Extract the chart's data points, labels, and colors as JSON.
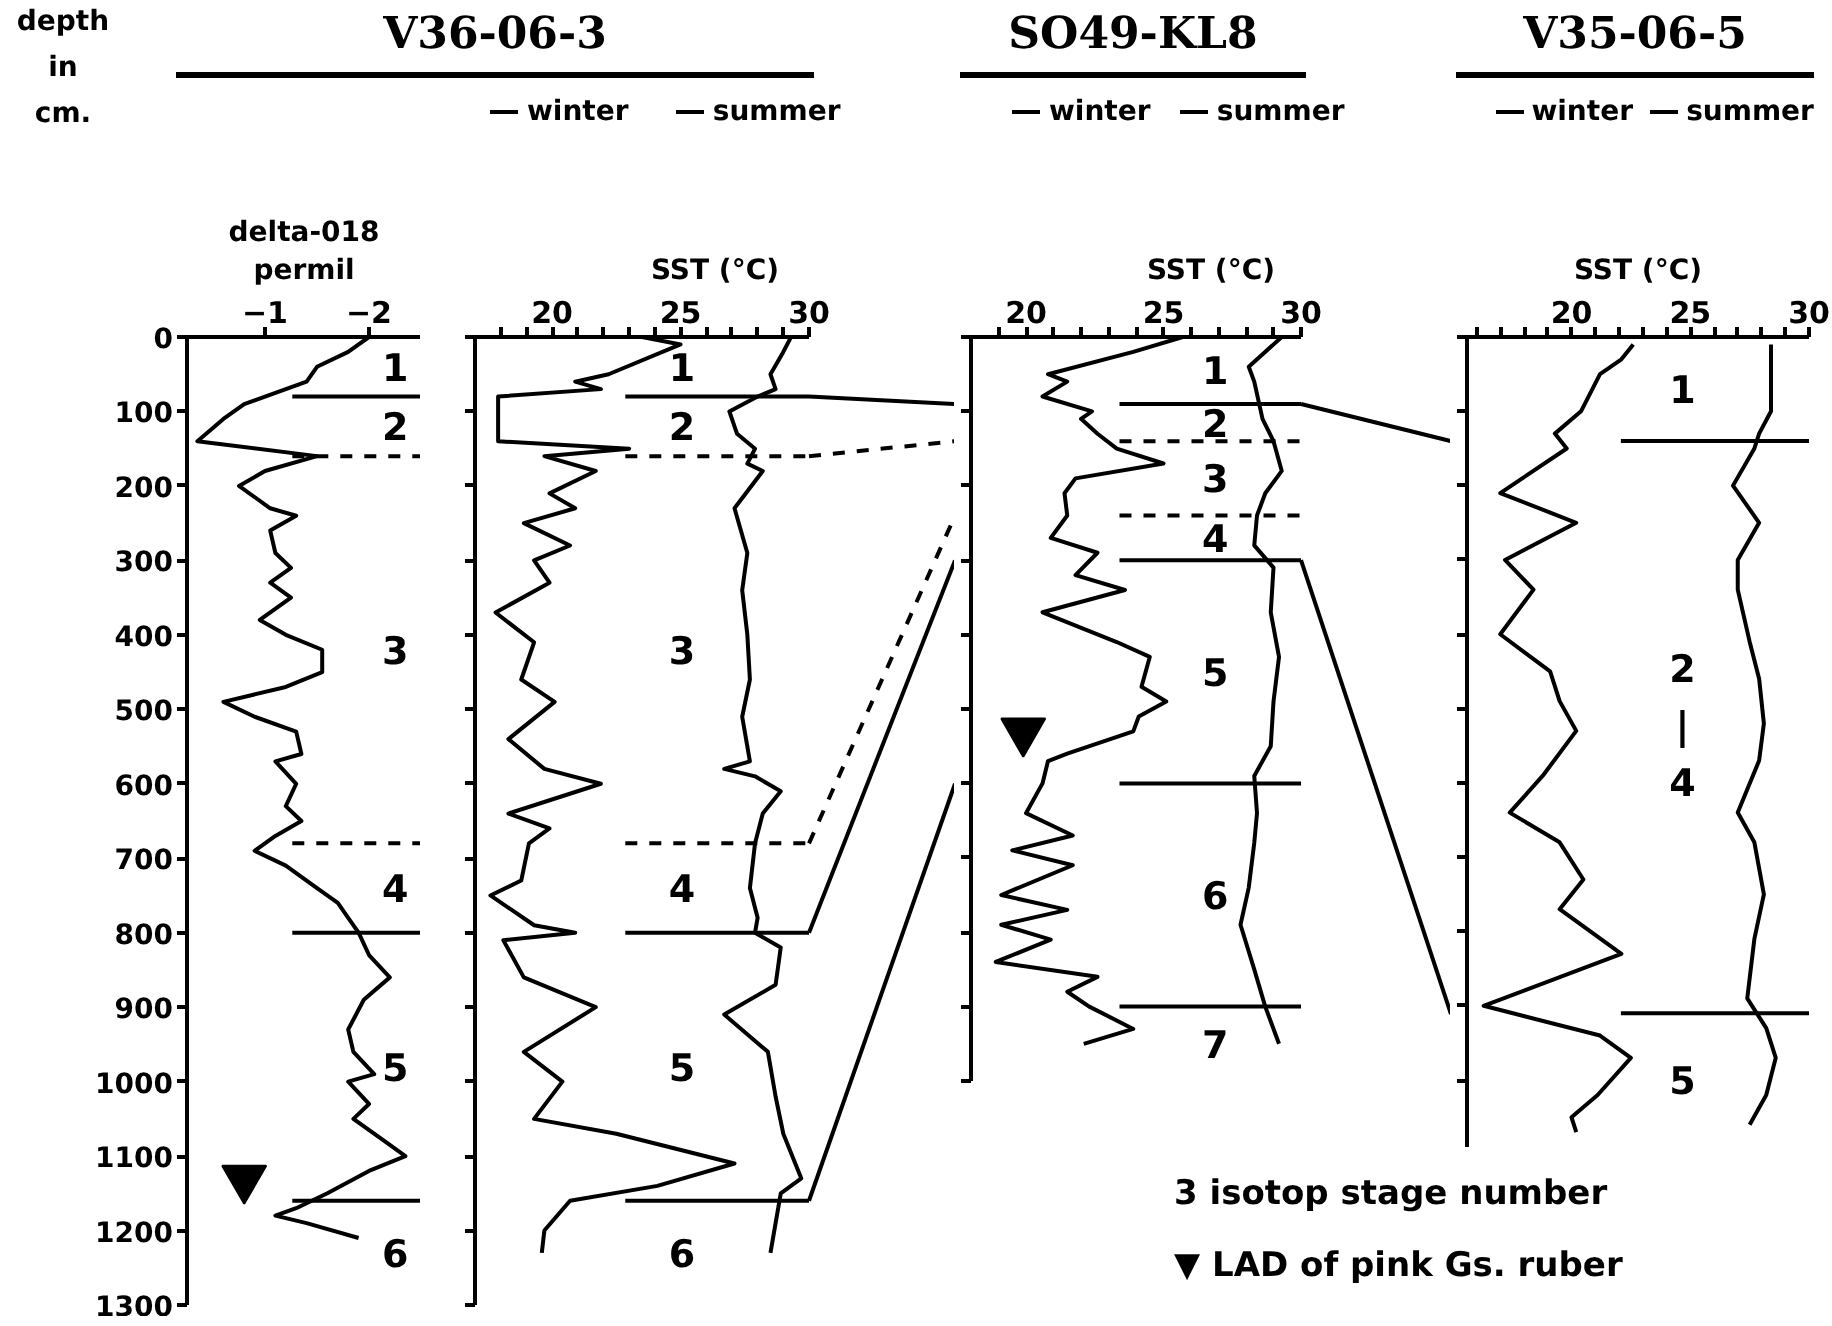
{
  "chart_data": [
    {
      "type": "line",
      "xlabel": "delta-018\npermil",
      "ylabel": "depth\nin\ncm.",
      "xlim": [
        -0.25,
        -2.5
      ],
      "xticks": [
        -1,
        -2
      ],
      "ylim": [
        1300,
        0
      ],
      "yticks": [
        0,
        100,
        200,
        300,
        400,
        500,
        600,
        700,
        800,
        900,
        1000,
        1100,
        1200,
        1300
      ],
      "series": [
        {
          "color": "#000000",
          "x": [
            -2.0,
            -1.8,
            -1.5,
            -1.4,
            -0.8,
            -0.6,
            -0.35,
            -1.5,
            -1.0,
            -0.75,
            -1.05,
            -1.3,
            -1.05,
            -1.1,
            -1.25,
            -1.05,
            -1.25,
            -0.95,
            -1.2,
            -1.55,
            -1.55,
            -1.2,
            -0.6,
            -0.9,
            -1.3,
            -1.35,
            -1.1,
            -1.3,
            -1.2,
            -1.35,
            -1.1,
            -0.9,
            -1.2,
            -1.5,
            -1.7,
            -1.8,
            -1.9,
            -2.0,
            -2.2,
            -1.95,
            -1.8,
            -1.85,
            -2.05,
            -1.8,
            -2.0,
            -1.85,
            -2.15,
            -2.35,
            -2.0,
            -1.6,
            -1.3,
            -1.1,
            -1.4,
            -1.9
          ],
          "values": [
            0,
            20,
            40,
            60,
            90,
            110,
            140,
            160,
            180,
            200,
            230,
            240,
            260,
            290,
            310,
            330,
            350,
            380,
            400,
            420,
            450,
            470,
            490,
            510,
            530,
            560,
            570,
            600,
            630,
            650,
            670,
            690,
            710,
            740,
            760,
            780,
            800,
            830,
            860,
            890,
            930,
            960,
            990,
            1000,
            1030,
            1050,
            1080,
            1100,
            1120,
            1150,
            1170,
            1180,
            1190,
            1210
          ]
        },
        {
          "type": "scatter",
          "marker": "triangle",
          "color": "#000000",
          "x": [
            -0.8
          ],
          "values": [
            1130
          ]
        }
      ],
      "ref_lines": [
        {
          "axis": "y",
          "value": 80,
          "line_style": "solid"
        },
        {
          "axis": "y",
          "value": 160,
          "line_style": "dashed"
        },
        {
          "axis": "y",
          "value": 680,
          "line_style": "dashed"
        },
        {
          "axis": "y",
          "value": 800,
          "line_style": "solid"
        },
        {
          "axis": "y",
          "value": 1160,
          "line_style": "solid"
        }
      ],
      "annotations": [
        "1",
        "2",
        "3",
        "4",
        "5",
        "6"
      ]
    },
    {
      "type": "line",
      "title": "V36-06-3",
      "xlabel": "SST (°C)",
      "xlim": [
        17,
        30
      ],
      "xticks": [
        {
          "value": 18,
          "label": null
        },
        {
          "value": 19,
          "label": null
        },
        20,
        {
          "value": 21,
          "label": null
        },
        {
          "value": 22,
          "label": null
        },
        {
          "value": 23,
          "label": null
        },
        {
          "value": 24,
          "label": null
        },
        25,
        {
          "value": 26,
          "label": null
        },
        {
          "value": 27,
          "label": null
        },
        {
          "value": 28,
          "label": null
        },
        {
          "value": 29,
          "label": null
        },
        30
      ],
      "ylim": [
        1300,
        0
      ],
      "yticks": [
        0,
        100,
        200,
        300,
        400,
        500,
        600,
        700,
        800,
        900,
        1000,
        1100,
        1200,
        1300
      ],
      "tick_labels": "x",
      "legend": "top",
      "series": [
        {
          "name": "winter",
          "color": "#000000",
          "x": [
            23.5,
            25.0,
            22.2,
            20.9,
            21.9,
            17.9,
            17.9,
            23.0,
            19.7,
            21.7,
            19.9,
            20.9,
            18.9,
            20.7,
            19.3,
            19.9,
            17.8,
            19.3,
            18.8,
            20.1,
            18.3,
            19.7,
            21.9,
            18.3,
            19.9,
            19.1,
            18.8,
            17.6,
            19.3,
            20.9,
            18.1,
            18.9,
            21.7,
            18.9,
            20.4,
            19.3,
            22.5,
            27.1,
            24.1,
            20.7,
            19.7,
            19.6
          ],
          "values": [
            0,
            10,
            50,
            60,
            70,
            80,
            140,
            150,
            160,
            180,
            210,
            230,
            250,
            280,
            300,
            330,
            370,
            410,
            460,
            490,
            540,
            580,
            600,
            640,
            660,
            680,
            730,
            750,
            790,
            800,
            810,
            860,
            900,
            960,
            1000,
            1050,
            1070,
            1110,
            1140,
            1160,
            1200,
            1230
          ]
        },
        {
          "name": "summer",
          "color": "#000000",
          "x": [
            29.3,
            29.0,
            28.5,
            28.7,
            28.0,
            26.9,
            27.2,
            27.9,
            27.6,
            28.2,
            27.1,
            27.6,
            27.4,
            27.6,
            27.7,
            27.4,
            27.7,
            26.7,
            27.9,
            28.9,
            28.2,
            27.9,
            27.7,
            28.0,
            27.9,
            28.9,
            28.7,
            26.7,
            28.4,
            28.7,
            29.0,
            29.7,
            28.9,
            28.5
          ],
          "values": [
            0,
            20,
            50,
            70,
            80,
            100,
            130,
            150,
            170,
            180,
            230,
            290,
            340,
            400,
            460,
            510,
            570,
            580,
            590,
            610,
            640,
            680,
            740,
            780,
            800,
            820,
            870,
            910,
            960,
            1020,
            1070,
            1130,
            1150,
            1230
          ]
        }
      ],
      "ref_lines": [
        {
          "axis": "y",
          "value": 80,
          "line_style": "solid"
        },
        {
          "axis": "y",
          "value": 160,
          "line_style": "dashed"
        },
        {
          "axis": "y",
          "value": 680,
          "line_style": "dashed"
        },
        {
          "axis": "y",
          "value": 800,
          "line_style": "solid"
        },
        {
          "axis": "y",
          "value": 1160,
          "line_style": "solid"
        }
      ],
      "annotations": [
        "1",
        "2",
        "3",
        "4",
        "5",
        "6"
      ]
    },
    {
      "type": "line",
      "title": "SO49-KL8",
      "xlabel": "SST (°C)",
      "xlim": [
        18,
        30
      ],
      "xticks": [
        {
          "value": 19,
          "label": null
        },
        20,
        {
          "value": 21,
          "label": null
        },
        {
          "value": 22,
          "label": null
        },
        {
          "value": 23,
          "label": null
        },
        {
          "value": 24,
          "label": null
        },
        25,
        {
          "value": 26,
          "label": null
        },
        {
          "value": 27,
          "label": null
        },
        {
          "value": 28,
          "label": null
        },
        {
          "value": 29,
          "label": null
        },
        30
      ],
      "ylim": [
        1000,
        0
      ],
      "yticks": [
        0,
        100,
        200,
        300,
        400,
        500,
        600,
        700,
        800,
        900,
        1000
      ],
      "tick_labels": "x",
      "legend": "top",
      "series": [
        {
          "name": "winter",
          "color": "#000000",
          "x": [
            25.7,
            23.9,
            20.8,
            21.5,
            20.6,
            22.4,
            22.0,
            22.6,
            23.3,
            25.0,
            21.8,
            21.4,
            21.5,
            20.9,
            22.6,
            21.8,
            23.6,
            20.6,
            23.3,
            24.5,
            24.2,
            25.1,
            24.1,
            23.9,
            21.5,
            20.8,
            20.6,
            20.0,
            21.7,
            19.5,
            21.7,
            19.1,
            21.5,
            19.1,
            20.9,
            18.9,
            22.6,
            21.5,
            22.3,
            23.9,
            22.1
          ],
          "values": [
            0,
            20,
            50,
            60,
            80,
            100,
            110,
            130,
            150,
            170,
            190,
            210,
            240,
            270,
            290,
            320,
            340,
            370,
            410,
            430,
            470,
            490,
            510,
            530,
            560,
            570,
            600,
            640,
            670,
            690,
            710,
            750,
            770,
            790,
            810,
            840,
            860,
            880,
            900,
            930,
            950
          ]
        },
        {
          "name": "summer",
          "color": "#000000",
          "x": [
            29.3,
            28.1,
            28.3,
            28.6,
            29.0,
            29.3,
            28.7,
            28.4,
            28.3,
            29.0,
            28.9,
            29.2,
            29.0,
            28.9,
            28.3,
            28.4,
            28.3,
            28.1,
            27.8,
            28.3,
            28.7,
            29.2
          ],
          "values": [
            0,
            40,
            60,
            110,
            140,
            180,
            210,
            240,
            280,
            310,
            370,
            430,
            490,
            550,
            590,
            640,
            680,
            740,
            790,
            850,
            900,
            950
          ]
        },
        {
          "type": "scatter",
          "marker": "triangle",
          "color": "#000000",
          "x": [
            19.9
          ],
          "values": [
            530
          ]
        }
      ],
      "ref_lines": [
        {
          "axis": "y",
          "value": 90,
          "line_style": "solid"
        },
        {
          "axis": "y",
          "value": 140,
          "line_style": "dashed"
        },
        {
          "axis": "y",
          "value": 240,
          "line_style": "dashed"
        },
        {
          "axis": "y",
          "value": 300,
          "line_style": "solid"
        },
        {
          "axis": "y",
          "value": 600,
          "line_style": "solid"
        },
        {
          "axis": "y",
          "value": 900,
          "line_style": "solid"
        }
      ],
      "annotations": [
        "1",
        "2",
        "3",
        "4",
        "5",
        "6",
        "7"
      ]
    },
    {
      "type": "line",
      "title": "V35-06-5",
      "xlabel": "SST (°C)",
      "xlim": [
        15.6,
        30
      ],
      "xticks": [
        {
          "value": 16,
          "label": null
        },
        {
          "value": 17,
          "label": null
        },
        {
          "value": 18,
          "label": null
        },
        {
          "value": 19,
          "label": null
        },
        20,
        {
          "value": 21,
          "label": null
        },
        {
          "value": 22,
          "label": null
        },
        {
          "value": 23,
          "label": null
        },
        {
          "value": 24,
          "label": null
        },
        25,
        {
          "value": 26,
          "label": null
        },
        {
          "value": 27,
          "label": null
        },
        {
          "value": 28,
          "label": null
        },
        {
          "value": 29,
          "label": null
        },
        30
      ],
      "ylim": [
        1090,
        0
      ],
      "yticks": [
        0,
        100,
        200,
        300,
        400,
        500,
        600,
        700,
        800,
        900,
        1000
      ],
      "tick_labels": "x",
      "legend": "top",
      "series": [
        {
          "name": "winter",
          "color": "#000000",
          "x": [
            22.6,
            22.1,
            21.2,
            20.4,
            19.3,
            19.8,
            17.0,
            20.2,
            17.2,
            18.4,
            17.0,
            19.1,
            19.5,
            20.2,
            18.8,
            17.4,
            19.5,
            20.5,
            19.5,
            22.1,
            16.3,
            21.2,
            22.5,
            21.1,
            20.0,
            20.2
          ],
          "values": [
            10,
            30,
            50,
            100,
            130,
            150,
            210,
            250,
            300,
            340,
            400,
            450,
            490,
            530,
            590,
            640,
            680,
            730,
            770,
            830,
            900,
            940,
            970,
            1020,
            1050,
            1070
          ]
        },
        {
          "name": "summer",
          "color": "#000000",
          "x": [
            28.4,
            28.4,
            28.4,
            27.9,
            27.7,
            26.8,
            27.9,
            27.0,
            27.0,
            27.5,
            27.9,
            28.1,
            27.9,
            27.0,
            27.7,
            28.1,
            27.7,
            27.4,
            28.2,
            28.6,
            28.2,
            27.5
          ],
          "values": [
            10,
            50,
            100,
            130,
            150,
            200,
            250,
            300,
            340,
            410,
            460,
            520,
            570,
            640,
            680,
            750,
            810,
            890,
            930,
            970,
            1020,
            1060
          ]
        }
      ],
      "ref_lines": [
        {
          "axis": "y",
          "value": 140,
          "line_style": "solid"
        },
        {
          "axis": "y",
          "value": 910,
          "line_style": "solid"
        }
      ],
      "annotations": [
        "1",
        "2\n|\n4",
        "5",
        "3 isotop stage number",
        "▼ LAD of pink Gs. ruber"
      ]
    }
  ]
}
